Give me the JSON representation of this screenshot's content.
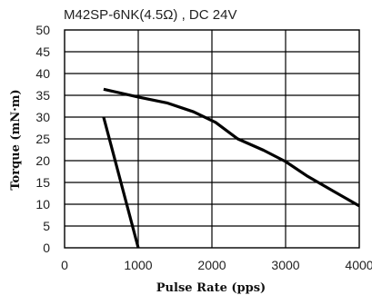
{
  "chart_data": {
    "type": "line",
    "title": "M42SP-6NK(4.5Ω) , DC 24V",
    "xlabel": "Pulse Rate (pps)",
    "ylabel": "Torque (mN·m)",
    "xlim": [
      0,
      4000
    ],
    "ylim": [
      0,
      50
    ],
    "xticks": [
      0,
      1000,
      2000,
      3000,
      4000
    ],
    "yticks": [
      0,
      5,
      10,
      15,
      20,
      25,
      30,
      35,
      40,
      45,
      50
    ],
    "grid": true,
    "legend": "none",
    "line_color": "#000000",
    "series": [
      {
        "points": [
          [
            530,
            36.4
          ],
          [
            1000,
            34.6
          ],
          [
            1400,
            33.2
          ],
          [
            1750,
            31.2
          ],
          [
            2050,
            28.8
          ],
          [
            2350,
            25.0
          ],
          [
            2700,
            22.4
          ],
          [
            3000,
            19.8
          ],
          [
            3300,
            16.4
          ],
          [
            3650,
            13.0
          ],
          [
            4000,
            9.6
          ]
        ]
      },
      {
        "points": [
          [
            530,
            30.0
          ],
          [
            1000,
            0.0
          ]
        ]
      }
    ]
  }
}
